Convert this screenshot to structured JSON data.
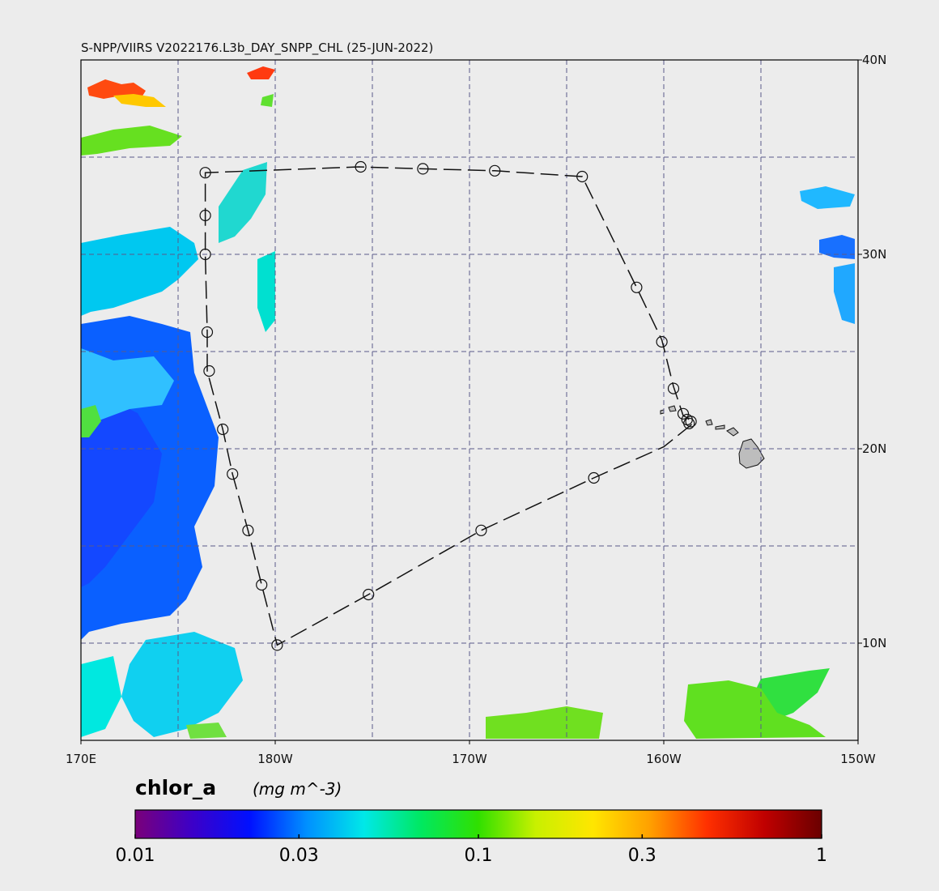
{
  "title": "S-NPP/VIIRS V2022176.L3b_DAY_SNPP_CHL (25-JUN-2022)",
  "map": {
    "lon_range": [
      170,
      210
    ],
    "lat_range": [
      5,
      40
    ],
    "graticule_lons": [
      175,
      180,
      185,
      190,
      195,
      200,
      205
    ],
    "graticule_lats": [
      10,
      15,
      20,
      25,
      30,
      35
    ],
    "x_ticks": [
      {
        "lon": 170,
        "label": "170E"
      },
      {
        "lon": 180,
        "label": "180W"
      },
      {
        "lon": 190,
        "label": "170W"
      },
      {
        "lon": 200,
        "label": "160W"
      },
      {
        "lon": 210,
        "label": "150W"
      }
    ],
    "y_ticks": [
      {
        "lat": 40,
        "label": "40N"
      },
      {
        "lat": 30,
        "label": "30N"
      },
      {
        "lat": 20,
        "label": "20N"
      },
      {
        "lat": 10,
        "label": "10N"
      }
    ],
    "colors": {
      "ocean": "#ececec",
      "grid": "#5a5a8a",
      "land": "#bdbdbd",
      "track": "#111111"
    }
  },
  "track": {
    "description_points": [
      [
        201.3,
        21.5
      ],
      [
        201.2,
        21.6
      ],
      [
        201.0,
        21.7
      ],
      [
        200.9,
        22.0
      ],
      [
        200.5,
        23.2
      ],
      [
        199.9,
        25.6
      ],
      [
        198.6,
        28.3
      ],
      [
        195.8,
        34.0
      ],
      [
        191.3,
        34.3
      ],
      [
        187.6,
        34.4
      ],
      [
        184.3,
        34.5
      ],
      [
        176.4,
        34.2
      ],
      [
        176.4,
        32.0
      ],
      [
        176.4,
        30.0
      ],
      [
        176.5,
        26.0
      ],
      [
        176.5,
        24.0
      ],
      [
        177.3,
        21.0
      ],
      [
        177.8,
        18.7
      ],
      [
        178.6,
        15.8
      ],
      [
        179.3,
        13.0
      ],
      [
        180.1,
        9.9
      ],
      [
        184.8,
        12.5
      ],
      [
        190.6,
        15.8
      ],
      [
        196.4,
        18.5
      ],
      [
        200.0,
        20.1
      ],
      [
        201.5,
        21.3
      ]
    ],
    "markers": [
      [
        201.3,
        21.3
      ],
      [
        201.4,
        21.4
      ],
      [
        201.2,
        21.5
      ],
      [
        201.0,
        21.8
      ],
      [
        200.5,
        23.1
      ],
      [
        199.9,
        25.5
      ],
      [
        198.6,
        28.3
      ],
      [
        195.8,
        34.0
      ],
      [
        191.3,
        34.3
      ],
      [
        187.6,
        34.4
      ],
      [
        184.4,
        34.5
      ],
      [
        176.4,
        34.2
      ],
      [
        176.4,
        32.0
      ],
      [
        176.4,
        30.0
      ],
      [
        176.5,
        26.0
      ],
      [
        176.6,
        24.0
      ],
      [
        177.3,
        21.0
      ],
      [
        177.8,
        18.7
      ],
      [
        178.6,
        15.8
      ],
      [
        179.3,
        13.0
      ],
      [
        180.1,
        9.9
      ],
      [
        184.8,
        12.5
      ],
      [
        190.6,
        15.8
      ],
      [
        196.4,
        18.5
      ]
    ]
  },
  "colorbar": {
    "name": "chlor_a",
    "units": "(mg m^-3)",
    "range": [
      0.01,
      1
    ],
    "scale": "log",
    "ticks": [
      {
        "value": 0.01,
        "label": "0.01"
      },
      {
        "value": 0.03,
        "label": "0.03"
      },
      {
        "value": 0.1,
        "label": "0.1"
      },
      {
        "value": 0.3,
        "label": "0.3"
      },
      {
        "value": 1,
        "label": "1"
      }
    ],
    "stops": [
      "#7a007a",
      "#3c00c8",
      "#0010ff",
      "#0090ff",
      "#00e8e8",
      "#00e860",
      "#30e000",
      "#c8f000",
      "#ffe600",
      "#ffa000",
      "#ff3000",
      "#c00000",
      "#6a0000"
    ]
  }
}
